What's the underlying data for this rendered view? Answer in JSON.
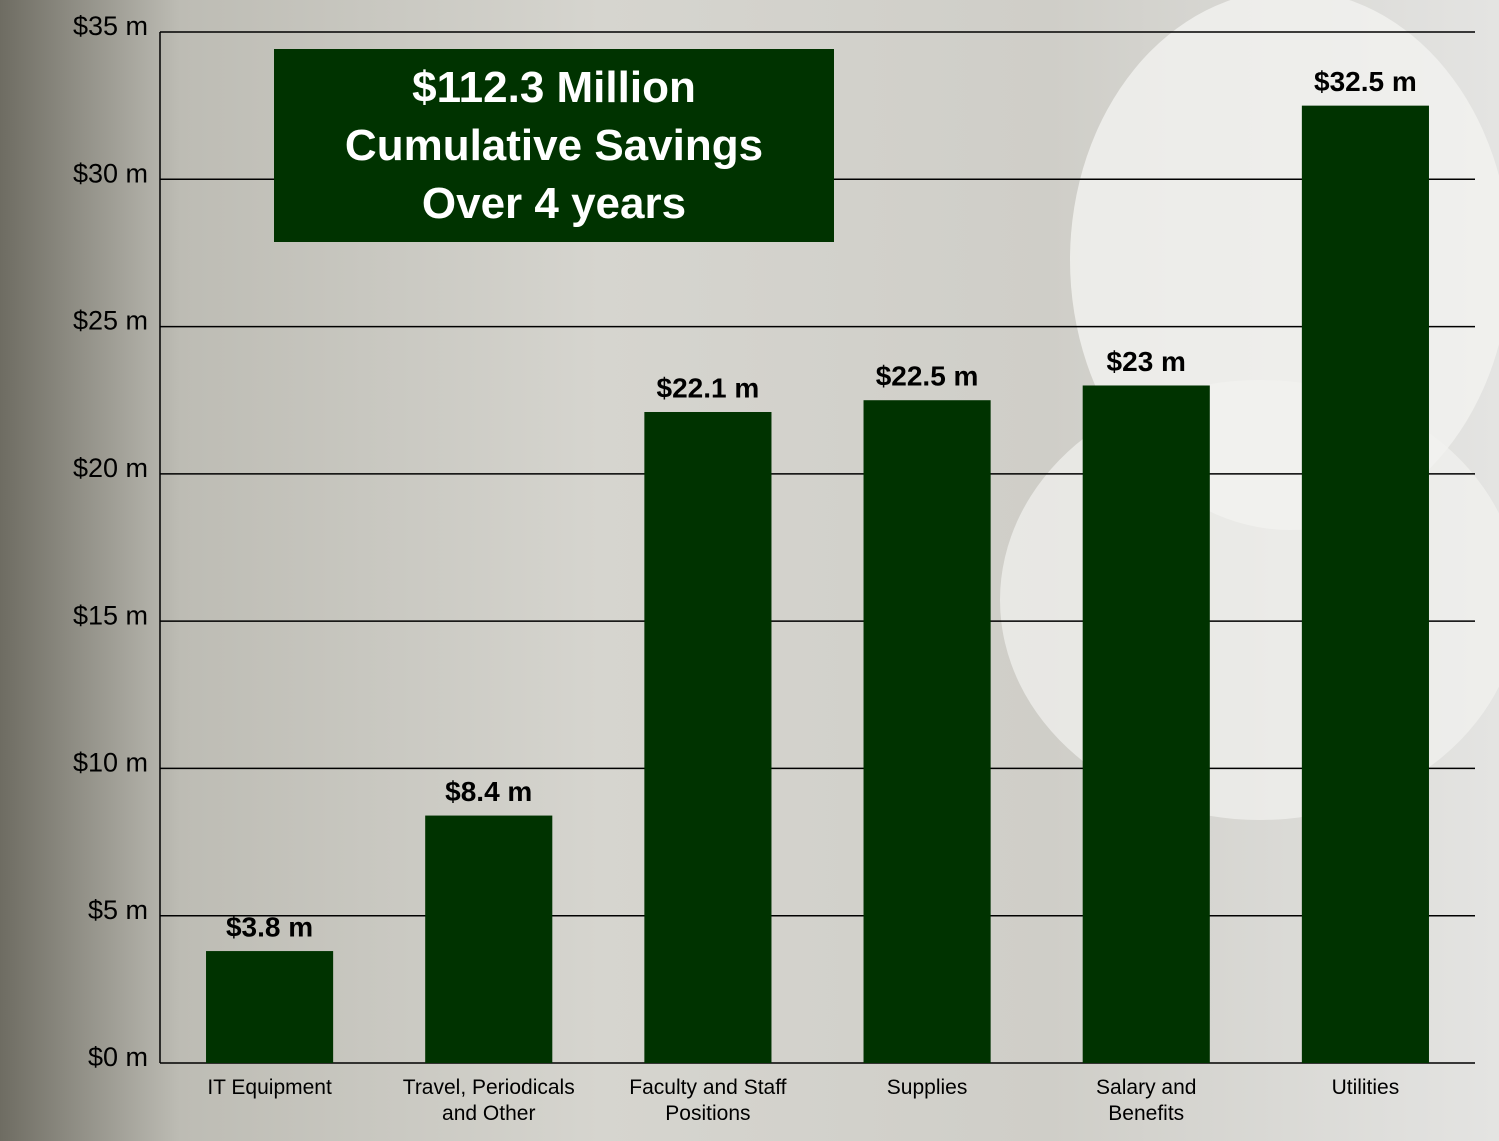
{
  "chart_data": {
    "type": "bar",
    "title": "$112.3 Million\nCumulative Savings\nOver 4 years",
    "categories": [
      "IT Equipment",
      "Travel, Periodicals\nand Other",
      "Faculty and Staff\nPositions",
      "Supplies",
      "Salary and\nBenefits",
      "Utilities"
    ],
    "values": [
      3.8,
      8.4,
      22.1,
      22.5,
      23,
      32.5
    ],
    "value_labels": [
      "$3.8 m",
      "$8.4 m",
      "$22.1 m",
      "$22.5 m",
      "$23 m",
      "$32.5 m"
    ],
    "color": "#003300",
    "ylim": [
      0,
      35
    ],
    "yticks": [
      {
        "value": 0,
        "label": "$0 m"
      },
      {
        "value": 5,
        "label": "$5 m"
      },
      {
        "value": 10,
        "label": "$10 m"
      },
      {
        "value": 15,
        "label": "$15 m"
      },
      {
        "value": 20,
        "label": "$20 m"
      },
      {
        "value": 25,
        "label": "$25 m"
      },
      {
        "value": 30,
        "label": "$30 m"
      },
      {
        "value": 35,
        "label": "$35 m"
      }
    ],
    "grid": true
  }
}
